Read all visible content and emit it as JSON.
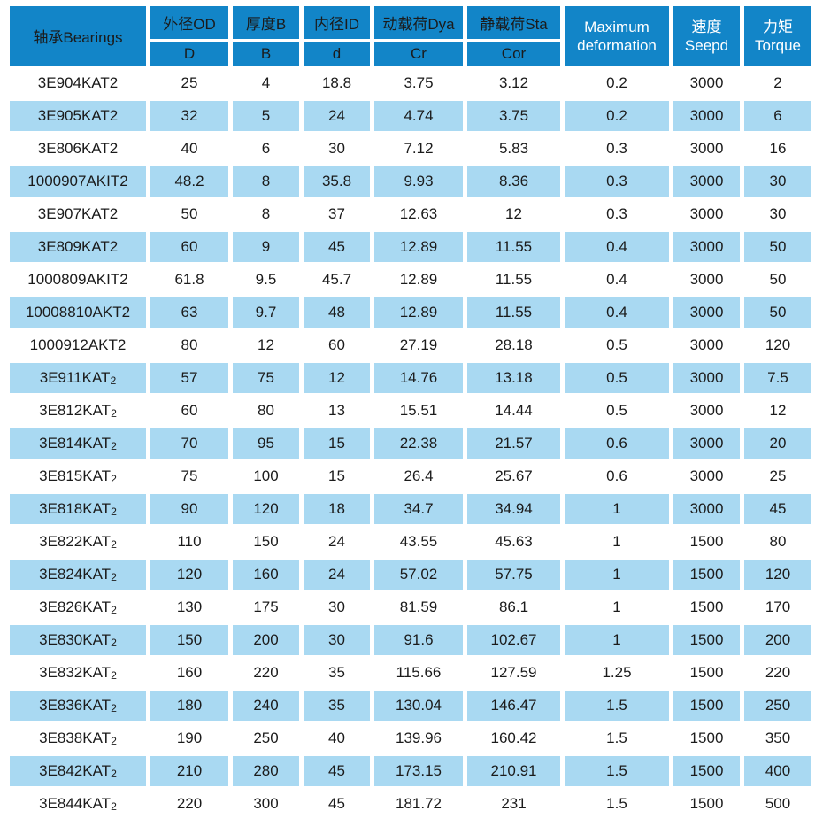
{
  "colors": {
    "header_blue": "#1285c8",
    "row_alt_blue": "#a9d9f2",
    "header_text_dark": "#1b1b1b",
    "header_text_light": "#ffffff"
  },
  "table": {
    "header": {
      "bearings": "轴承Bearings",
      "od": {
        "top": "外径OD",
        "bottom": "D"
      },
      "thickness": {
        "top": "厚度B",
        "bottom": "B"
      },
      "inner_diameter": {
        "top": "内径ID",
        "bottom": "d"
      },
      "dynamic_load": {
        "top": "动载荷Dya",
        "bottom": "Cr"
      },
      "static_load": {
        "top": "静载荷Sta",
        "bottom": "Cor"
      },
      "max_deformation": {
        "line1": "Maximum",
        "line2": "deformation"
      },
      "speed": {
        "line1": "速度",
        "line2": "Seepd"
      },
      "torque": {
        "line1": "力矩",
        "line2": "Torque"
      }
    },
    "rows": [
      [
        "3E904KAT2",
        "25",
        "4",
        "18.8",
        "3.75",
        "3.12",
        "0.2",
        "3000",
        "2"
      ],
      [
        "3E905KAT2",
        "32",
        "5",
        "24",
        "4.74",
        "3.75",
        "0.2",
        "3000",
        "6"
      ],
      [
        "3E806KAT2",
        "40",
        "6",
        "30",
        "7.12",
        "5.83",
        "0.3",
        "3000",
        "16"
      ],
      [
        "1000907AKIT2",
        "48.2",
        "8",
        "35.8",
        "9.93",
        "8.36",
        "0.3",
        "3000",
        "30"
      ],
      [
        "3E907KAT2",
        "50",
        "8",
        "37",
        "12.63",
        "12",
        "0.3",
        "3000",
        "30"
      ],
      [
        "3E809KAT2",
        "60",
        "9",
        "45",
        "12.89",
        "11.55",
        "0.4",
        "3000",
        "50"
      ],
      [
        "1000809AKIT2",
        "61.8",
        "9.5",
        "45.7",
        "12.89",
        "11.55",
        "0.4",
        "3000",
        "50"
      ],
      [
        "10008810AKT2",
        "63",
        "9.7",
        "48",
        "12.89",
        "11.55",
        "0.4",
        "3000",
        "50"
      ],
      [
        "1000912AKT2",
        "80",
        "12",
        "60",
        "27.19",
        "28.18",
        "0.5",
        "3000",
        "120"
      ],
      [
        "3E911KAT₂",
        "57",
        "75",
        "12",
        "14.76",
        "13.18",
        "0.5",
        "3000",
        "7.5"
      ],
      [
        "3E812KAT₂",
        "60",
        "80",
        "13",
        "15.51",
        "14.44",
        "0.5",
        "3000",
        "12"
      ],
      [
        "3E814KAT₂",
        "70",
        "95",
        "15",
        "22.38",
        "21.57",
        "0.6",
        "3000",
        "20"
      ],
      [
        "3E815KAT₂",
        "75",
        "100",
        "15",
        "26.4",
        "25.67",
        "0.6",
        "3000",
        "25"
      ],
      [
        "3E818KAT₂",
        "90",
        "120",
        "18",
        "34.7",
        "34.94",
        "1",
        "3000",
        "45"
      ],
      [
        "3E822KAT₂",
        "110",
        "150",
        "24",
        "43.55",
        "45.63",
        "1",
        "1500",
        "80"
      ],
      [
        "3E824KAT₂",
        "120",
        "160",
        "24",
        "57.02",
        "57.75",
        "1",
        "1500",
        "120"
      ],
      [
        "3E826KAT₂",
        "130",
        "175",
        "30",
        "81.59",
        "86.1",
        "1",
        "1500",
        "170"
      ],
      [
        "3E830KAT₂",
        "150",
        "200",
        "30",
        "91.6",
        "102.67",
        "1",
        "1500",
        "200"
      ],
      [
        "3E832KAT₂",
        "160",
        "220",
        "35",
        "115.66",
        "127.59",
        "1.25",
        "1500",
        "220"
      ],
      [
        "3E836KAT₂",
        "180",
        "240",
        "35",
        "130.04",
        "146.47",
        "1.5",
        "1500",
        "250"
      ],
      [
        "3E838KAT₂",
        "190",
        "250",
        "40",
        "139.96",
        "160.42",
        "1.5",
        "1500",
        "350"
      ],
      [
        "3E842KAT₂",
        "210",
        "280",
        "45",
        "173.15",
        "210.91",
        "1.5",
        "1500",
        "400"
      ],
      [
        "3E844KAT₂",
        "220",
        "300",
        "45",
        "181.72",
        "231",
        "1.5",
        "1500",
        "500"
      ]
    ]
  }
}
